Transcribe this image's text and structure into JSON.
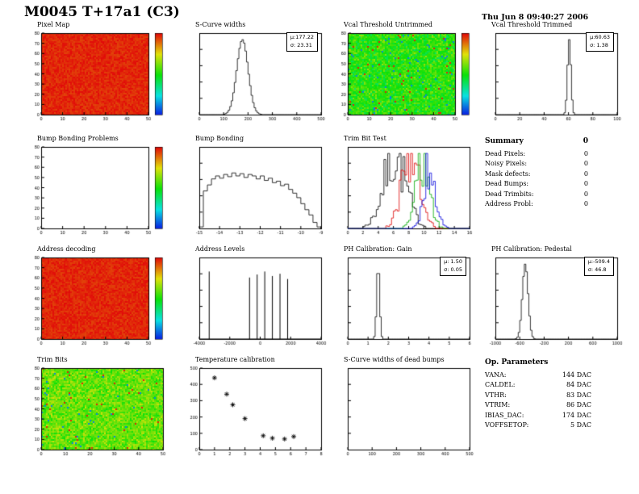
{
  "page": {
    "title": "M0045 T+17a1 (C3)",
    "timestamp": "Thu Jun  8 09:40:27 2006"
  },
  "chart_data": [
    {
      "id": "pixel-map",
      "type": "heatmap",
      "title": "Pixel Map",
      "mode": "uniform-high",
      "palette": "rainbow",
      "colorbar": true,
      "xlim": [
        0,
        50
      ],
      "xstep": 10,
      "ylim": [
        0,
        80
      ],
      "ystep": 10
    },
    {
      "id": "scurve-widths",
      "type": "hist",
      "title": "S-Curve widths",
      "mean": 177.22,
      "sigma": 23.31,
      "xlim": [
        0,
        500
      ],
      "xstep": 100,
      "stats_mu": "μ:177.22",
      "stats_sigma": "σ: 23.31"
    },
    {
      "id": "vcal-threshold-untrimmed",
      "type": "heatmap",
      "title": "Vcal Threshold Untrimmed",
      "mode": "noise",
      "center": 0.52,
      "spread": 0.16,
      "outliers": 0.03,
      "palette": "rainbow",
      "colorbar": true,
      "xlim": [
        0,
        50
      ],
      "xstep": 10,
      "ylim": [
        0,
        80
      ],
      "ystep": 10
    },
    {
      "id": "vcal-threshold-trimmed",
      "type": "hist",
      "title": "Vcal Threshold Trimmed",
      "mean": 60.63,
      "sigma": 1.38,
      "xlim": [
        0,
        100
      ],
      "xstep": 20,
      "stats_mu": "μ:60.63",
      "stats_sigma": "σ: 1.38"
    },
    {
      "id": "bump-bonding-problems",
      "type": "heatmap",
      "title": "Bump Bonding Problems",
      "mode": "empty",
      "palette": "rainbow",
      "colorbar": true,
      "xlim": [
        0,
        50
      ],
      "xstep": 10,
      "ylim": [
        0,
        80
      ],
      "ystep": 10
    },
    {
      "id": "bump-bonding",
      "type": "hist-values",
      "title": "Bump Bonding",
      "xlim": [
        -15,
        -9
      ],
      "xstep": 1,
      "values": [
        0.02,
        0.5,
        0.58,
        0.66,
        0.7,
        0.67,
        0.72,
        0.69,
        0.74,
        0.7,
        0.73,
        0.68,
        0.72,
        0.7,
        0.66,
        0.7,
        0.64,
        0.67,
        0.61,
        0.63,
        0.57,
        0.59,
        0.52,
        0.47,
        0.41,
        0.33,
        0.25,
        0.18,
        0.08,
        0.02
      ]
    },
    {
      "id": "trim-bit-test",
      "type": "multihist",
      "title": "Trim Bit Test",
      "xlim": [
        0,
        16
      ],
      "xstep": 2,
      "series": [
        {
          "name": "black",
          "color": "#000000",
          "mean": 6.2,
          "sigma": 1.5,
          "height": 0.95
        },
        {
          "name": "red",
          "color": "#dd0000",
          "mean": 8.3,
          "sigma": 1.2,
          "height": 0.9
        },
        {
          "name": "green",
          "color": "#00aa00",
          "mean": 9.8,
          "sigma": 0.9,
          "height": 0.92
        },
        {
          "name": "blue",
          "color": "#0000dd",
          "mean": 10.8,
          "sigma": 0.8,
          "height": 0.88
        }
      ]
    },
    {
      "id": "address-decoding",
      "type": "heatmap",
      "title": "Address decoding",
      "mode": "uniform-high",
      "palette": "rainbow",
      "colorbar": true,
      "xlim": [
        0,
        50
      ],
      "xstep": 10,
      "ylim": [
        0,
        80
      ],
      "ystep": 10
    },
    {
      "id": "address-levels",
      "type": "spikes",
      "title": "Address Levels",
      "xlim": [
        -4000,
        4000
      ],
      "xstep": 2000,
      "positions": [
        -3350,
        -700,
        -200,
        300,
        800,
        1300,
        1800
      ],
      "heights": [
        0.9,
        0.82,
        0.86,
        0.9,
        0.84,
        0.87,
        0.8
      ]
    },
    {
      "id": "ph-calibration-gain",
      "type": "hist",
      "title": "PH Calibration: Gain",
      "mean": 1.5,
      "sigma": 0.05,
      "xlim": [
        0,
        6
      ],
      "xstep": 1,
      "stats_mu": "μ: 1.50",
      "stats_sigma": "σ: 0.05"
    },
    {
      "id": "ph-calibration-pedestal",
      "type": "hist",
      "title": "PH Calibration: Pedestal",
      "mean": -509.4,
      "sigma": 46.8,
      "xlim": [
        -1000,
        1000
      ],
      "xstep": 400,
      "stats_mu": "μ:-509.4",
      "stats_sigma": "σ: 46.8"
    },
    {
      "id": "trim-bits",
      "type": "heatmap",
      "title": "Trim Bits",
      "mode": "noise",
      "center": 0.6,
      "spread": 0.14,
      "outliers": 0.02,
      "palette": "rainbow",
      "colorbar": false,
      "xlim": [
        0,
        50
      ],
      "xstep": 10,
      "ylim": [
        0,
        80
      ],
      "ystep": 10
    },
    {
      "id": "temperature-calibration",
      "type": "scatter",
      "title": "Temperature calibration",
      "marker": "star",
      "xlim": [
        0,
        8
      ],
      "xstep": 1,
      "ylim": [
        0,
        500
      ],
      "ystep": 100,
      "points": [
        [
          1.0,
          440
        ],
        [
          1.8,
          340
        ],
        [
          2.2,
          275
        ],
        [
          3.0,
          190
        ],
        [
          4.2,
          85
        ],
        [
          4.8,
          70
        ],
        [
          5.6,
          65
        ],
        [
          6.2,
          80
        ]
      ]
    },
    {
      "id": "scurve-widths-dead-bumps",
      "type": "empty",
      "title": "S-Curve widths of dead bumps",
      "xlim": [
        0,
        500
      ],
      "xstep": 100
    }
  ],
  "summary": {
    "title": "Summary",
    "total": "0",
    "items": [
      {
        "label": "Dead Pixels:",
        "value": "0"
      },
      {
        "label": "Noisy Pixels:",
        "value": "0"
      },
      {
        "label": "Mask defects:",
        "value": "0"
      },
      {
        "label": "Dead Bumps:",
        "value": "0"
      },
      {
        "label": "Dead Trimbits:",
        "value": "0"
      },
      {
        "label": "Address Probl:",
        "value": "0"
      }
    ]
  },
  "op_parameters": {
    "title": "Op. Parameters",
    "items": [
      {
        "label": "VANA:",
        "value": "144 DAC"
      },
      {
        "label": "CALDEL:",
        "value": "84 DAC"
      },
      {
        "label": "VTHR:",
        "value": "83 DAC"
      },
      {
        "label": "VTRIM:",
        "value": "86 DAC"
      },
      {
        "label": "IBIAS_DAC:",
        "value": "174 DAC"
      },
      {
        "label": "VOFFSETOP:",
        "value": "5 DAC"
      }
    ]
  }
}
